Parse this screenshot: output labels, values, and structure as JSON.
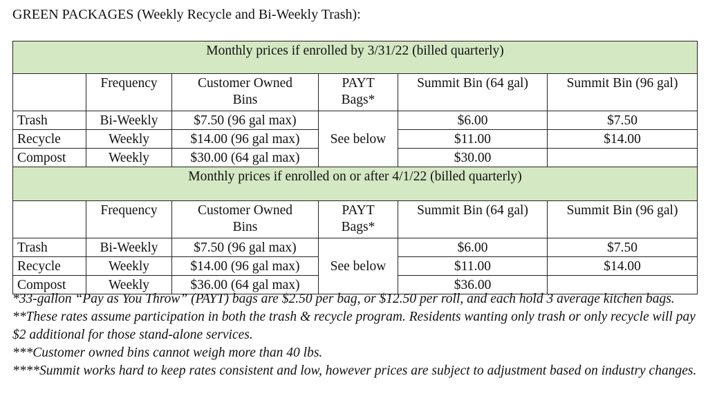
{
  "title": "GREEN PACKAGES (Weekly Recycle and Bi-Weekly Trash):",
  "headers": {
    "frequency": "Frequency",
    "customer_owned": "Customer Owned Bins",
    "payt": "PAYT Bags*",
    "summit64": "Summit Bin (64 gal)",
    "summit96": "Summit Bin (96 gal)"
  },
  "sections": [
    {
      "band": "Monthly prices if enrolled by 3/31/22 (billed quarterly)",
      "payt_note": "See below",
      "rows": [
        {
          "service": "Trash",
          "frequency": "Bi-Weekly",
          "customer_owned": "$7.50 (96 gal max)",
          "summit64": "$6.00",
          "summit96": "$7.50"
        },
        {
          "service": "Recycle",
          "frequency": "Weekly",
          "customer_owned": "$14.00 (96 gal max)",
          "summit64": "$11.00",
          "summit96": "$14.00"
        },
        {
          "service": "Compost",
          "frequency": "Weekly",
          "customer_owned": "$30.00 (64 gal max)",
          "summit64": "$30.00",
          "summit96": ""
        }
      ]
    },
    {
      "band": "Monthly prices if enrolled on or after 4/1/22 (billed quarterly)",
      "payt_note": "See below",
      "rows": [
        {
          "service": "Trash",
          "frequency": "Bi-Weekly",
          "customer_owned": "$7.50 (96 gal max)",
          "summit64": "$6.00",
          "summit96": "$7.50"
        },
        {
          "service": "Recycle",
          "frequency": "Weekly",
          "customer_owned": "$14.00 (96 gal max)",
          "summit64": "$11.00",
          "summit96": "$14.00"
        },
        {
          "service": "Compost",
          "frequency": "Weekly",
          "customer_owned": "$36.00 (64 gal max)",
          "summit64": "$36.00",
          "summit96": ""
        }
      ]
    }
  ],
  "notes": [
    "*33-gallon “Pay as You Throw” (PAYT) bags are $2.50 per bag, or $12.50 per roll, and each hold 3 average kitchen bags.",
    "**These rates assume participation in both the trash & recycle program. Residents wanting only trash or only recycle will pay $2 additional for those stand-alone services.",
    "***Customer owned bins cannot weigh more than 40 lbs.",
    "****Summit works hard to keep rates consistent and low, however prices are subject to adjustment based on industry changes."
  ],
  "colors": {
    "band_background": "#d5e8c4"
  }
}
